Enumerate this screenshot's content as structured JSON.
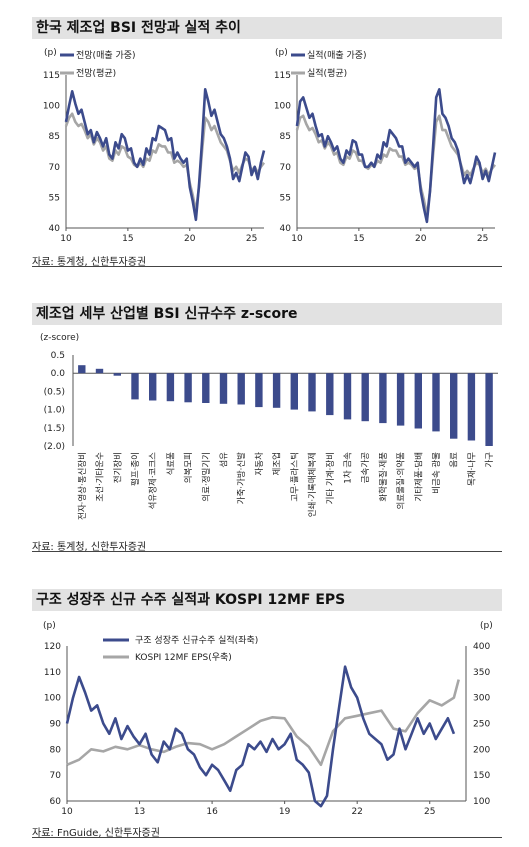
{
  "panel1": {
    "title": "한국 제조업 BSI 전망과 실적 추이",
    "source": "자료: 통계청, 신한투자증권",
    "chart_data": [
      {
        "type": "line",
        "unit_label": "(p)",
        "xlim": [
          10,
          26
        ],
        "xticks": [
          10,
          15,
          20,
          25
        ],
        "ylim": [
          40,
          115
        ],
        "yticks": [
          40,
          55,
          70,
          85,
          100,
          115
        ],
        "grid": false,
        "legend": "top-left",
        "series": [
          {
            "name": "전망(매출 가중)",
            "color": "#3c4b8c",
            "x": [
              10,
              10.25,
              10.5,
              10.75,
              11,
              11.25,
              11.5,
              11.75,
              12,
              12.25,
              12.5,
              12.75,
              13,
              13.25,
              13.5,
              13.75,
              14,
              14.25,
              14.5,
              14.75,
              15,
              15.25,
              15.5,
              15.75,
              16,
              16.25,
              16.5,
              16.75,
              17,
              17.25,
              17.5,
              17.75,
              18,
              18.25,
              18.5,
              18.75,
              19,
              19.25,
              19.5,
              19.75,
              20,
              20.25,
              20.5,
              20.75,
              21,
              21.25,
              21.5,
              21.75,
              22,
              22.25,
              22.5,
              22.75,
              23,
              23.25,
              23.5,
              23.75,
              24,
              24.25,
              24.5,
              24.75,
              25,
              25.25,
              25.5,
              25.75,
              26
            ],
            "y": [
              92,
              100,
              107,
              101,
              96,
              98,
              92,
              86,
              88,
              82,
              87,
              84,
              80,
              84,
              76,
              74,
              82,
              79,
              86,
              84,
              78,
              79,
              72,
              70,
              74,
              71,
              79,
              76,
              84,
              83,
              90,
              89,
              88,
              83,
              84,
              74,
              77,
              74,
              72,
              74,
              60,
              53,
              44,
              61,
              83,
              108,
              102,
              95,
              98,
              92,
              86,
              84,
              80,
              74,
              64,
              67,
              63,
              70,
              77,
              75,
              66,
              70,
              64,
              72,
              78
            ]
          },
          {
            "name": "전망(평균)",
            "color": "#a6a6a6",
            "x": [
              10,
              10.25,
              10.5,
              10.75,
              11,
              11.25,
              11.5,
              11.75,
              12,
              12.25,
              12.5,
              12.75,
              13,
              13.25,
              13.5,
              13.75,
              14,
              14.25,
              14.5,
              14.75,
              15,
              15.25,
              15.5,
              15.75,
              16,
              16.25,
              16.5,
              16.75,
              17,
              17.25,
              17.5,
              17.75,
              18,
              18.25,
              18.5,
              18.75,
              19,
              19.25,
              19.5,
              19.75,
              20,
              20.25,
              20.5,
              20.75,
              21,
              21.25,
              21.5,
              21.75,
              22,
              22.25,
              22.5,
              22.75,
              23,
              23.25,
              23.5,
              23.75,
              24,
              24.25,
              24.5,
              24.75,
              25,
              25.25,
              25.5,
              25.75,
              26
            ],
            "y": [
              90,
              94,
              96,
              92,
              90,
              91,
              88,
              84,
              86,
              81,
              84,
              82,
              78,
              80,
              74,
              73,
              78,
              76,
              80,
              79,
              75,
              74,
              71,
              70,
              72,
              70,
              74,
              73,
              78,
              77,
              81,
              80,
              80,
              77,
              77,
              72,
              73,
              72,
              70,
              71,
              62,
              56,
              48,
              60,
              78,
              94,
              92,
              88,
              90,
              86,
              82,
              80,
              78,
              73,
              68,
              70,
              67,
              71,
              74,
              73,
              68,
              70,
              67,
              70,
              72
            ]
          }
        ]
      },
      {
        "type": "line",
        "unit_label": "(p)",
        "xlim": [
          10,
          26
        ],
        "xticks": [
          10,
          15,
          20,
          25
        ],
        "ylim": [
          40,
          115
        ],
        "yticks": [
          40,
          55,
          70,
          85,
          100,
          115
        ],
        "grid": false,
        "legend": "top-left",
        "series": [
          {
            "name": "실적(매출 가중)",
            "color": "#3c4b8c",
            "x": [
              10,
              10.25,
              10.5,
              10.75,
              11,
              11.25,
              11.5,
              11.75,
              12,
              12.25,
              12.5,
              12.75,
              13,
              13.25,
              13.5,
              13.75,
              14,
              14.25,
              14.5,
              14.75,
              15,
              15.25,
              15.5,
              15.75,
              16,
              16.25,
              16.5,
              16.75,
              17,
              17.25,
              17.5,
              17.75,
              18,
              18.25,
              18.5,
              18.75,
              19,
              19.25,
              19.5,
              19.75,
              20,
              20.25,
              20.5,
              20.75,
              21,
              21.25,
              21.5,
              21.75,
              22,
              22.25,
              22.5,
              22.75,
              23,
              23.25,
              23.5,
              23.75,
              24,
              24.25,
              24.5,
              24.75,
              25,
              25.25,
              25.5,
              25.75,
              26
            ],
            "y": [
              90,
              102,
              104,
              99,
              94,
              96,
              90,
              85,
              86,
              80,
              85,
              82,
              78,
              80,
              74,
              72,
              78,
              76,
              83,
              82,
              76,
              76,
              70,
              70,
              72,
              70,
              76,
              74,
              82,
              80,
              88,
              86,
              84,
              80,
              80,
              72,
              74,
              72,
              70,
              72,
              58,
              50,
              43,
              58,
              80,
              104,
              108,
              96,
              94,
              90,
              84,
              82,
              78,
              70,
              62,
              66,
              62,
              68,
              75,
              72,
              64,
              68,
              63,
              70,
              77
            ]
          },
          {
            "name": "실적(평균)",
            "color": "#a6a6a6",
            "x": [
              10,
              10.25,
              10.5,
              10.75,
              11,
              11.25,
              11.5,
              11.75,
              12,
              12.25,
              12.5,
              12.75,
              13,
              13.25,
              13.5,
              13.75,
              14,
              14.25,
              14.5,
              14.75,
              15,
              15.25,
              15.5,
              15.75,
              16,
              16.25,
              16.5,
              16.75,
              17,
              17.25,
              17.5,
              17.75,
              18,
              18.25,
              18.5,
              18.75,
              19,
              19.25,
              19.5,
              19.75,
              20,
              20.25,
              20.5,
              20.75,
              21,
              21.25,
              21.5,
              21.75,
              22,
              22.25,
              22.5,
              22.75,
              23,
              23.25,
              23.5,
              23.75,
              24,
              24.25,
              24.5,
              24.75,
              25,
              25.25,
              25.5,
              25.75,
              26
            ],
            "y": [
              88,
              94,
              95,
              91,
              88,
              89,
              86,
              82,
              83,
              79,
              82,
              80,
              76,
              77,
              72,
              71,
              75,
              74,
              78,
              77,
              73,
              73,
              70,
              69,
              71,
              70,
              73,
              72,
              76,
              75,
              79,
              78,
              78,
              75,
              75,
              71,
              72,
              71,
              69,
              70,
              60,
              54,
              46,
              58,
              76,
              92,
              95,
              88,
              88,
              84,
              80,
              78,
              76,
              71,
              66,
              68,
              66,
              69,
              72,
              71,
              67,
              69,
              66,
              69,
              71
            ]
          }
        ]
      }
    ]
  },
  "panel2": {
    "title": "제조업 세부 산업별 BSI 신규수주 z-score",
    "source": "자료: 통계청, 신한투자증권",
    "chart_data": {
      "type": "bar",
      "unit_label": "(z-score)",
      "ylim": [
        -2.0,
        0.5
      ],
      "yticks": [
        0.5,
        0.0,
        -0.5,
        -1.0,
        -1.5,
        -2.0
      ],
      "ytick_labels": [
        "0.5",
        "0.0",
        "(0.5)",
        "(1.0)",
        "(1.5)",
        "(2.0)"
      ],
      "bar_color": "#3c4b8c",
      "categories": [
        "전자·영상·통신장비",
        "조선·기타운수",
        "전기장비",
        "펄프·종이",
        "석유정제·코크스",
        "식료품",
        "의복모피",
        "의료·정밀기기",
        "섬유",
        "가죽·가방·신발",
        "자동차",
        "제조업",
        "고무·플라스틱",
        "인쇄·기록매체복제",
        "기타 기계·장비",
        "1차 금속",
        "금속가공",
        "화학물질·제품",
        "의료물질·의약품",
        "기타제품·담배",
        "비금속 광물",
        "음료",
        "목재·나무",
        "가구"
      ],
      "values": [
        0.22,
        0.12,
        -0.07,
        -0.72,
        -0.75,
        -0.77,
        -0.8,
        -0.82,
        -0.84,
        -0.86,
        -0.93,
        -0.95,
        -1.0,
        -1.05,
        -1.15,
        -1.27,
        -1.32,
        -1.37,
        -1.44,
        -1.52,
        -1.6,
        -1.8,
        -1.85,
        -2.0
      ]
    }
  },
  "panel3": {
    "title": "구조 성장주 신규 수주 실적과 KOSPI 12MF EPS",
    "source": "자료: FnGuide, 신한투자증권",
    "chart_data": {
      "type": "line",
      "left_unit_label": "(p)",
      "right_unit_label": "(p)",
      "xlim": [
        10,
        26.5
      ],
      "xticks": [
        10,
        13,
        16,
        19,
        22,
        25
      ],
      "ylim_left": [
        60,
        120
      ],
      "yticks_left": [
        60,
        70,
        80,
        90,
        100,
        110,
        120
      ],
      "ylim_right": [
        100,
        400
      ],
      "yticks_right": [
        100,
        150,
        200,
        250,
        300,
        350,
        400
      ],
      "grid": false,
      "legend": "top-left",
      "series": [
        {
          "name": "구조 성장주 신규수주 실적(좌축)",
          "axis": "left",
          "color": "#3c4b8c",
          "x": [
            10,
            10.25,
            10.5,
            10.75,
            11,
            11.25,
            11.5,
            11.75,
            12,
            12.25,
            12.5,
            12.75,
            13,
            13.25,
            13.5,
            13.75,
            14,
            14.25,
            14.5,
            14.75,
            15,
            15.25,
            15.5,
            15.75,
            16,
            16.25,
            16.5,
            16.75,
            17,
            17.25,
            17.5,
            17.75,
            18,
            18.25,
            18.5,
            18.75,
            19,
            19.25,
            19.5,
            19.75,
            20,
            20.25,
            20.5,
            20.75,
            21,
            21.25,
            21.5,
            21.75,
            22,
            22.25,
            22.5,
            22.75,
            23,
            23.25,
            23.5,
            23.75,
            24,
            24.25,
            24.5,
            24.75,
            25,
            25.25,
            25.5,
            25.75,
            26
          ],
          "y": [
            90,
            100,
            108,
            102,
            95,
            97,
            90,
            86,
            92,
            84,
            89,
            85,
            82,
            86,
            78,
            75,
            83,
            80,
            88,
            86,
            80,
            78,
            73,
            70,
            74,
            72,
            68,
            64,
            72,
            74,
            82,
            80,
            83,
            79,
            84,
            80,
            82,
            86,
            76,
            74,
            71,
            60,
            58,
            62,
            80,
            96,
            112,
            104,
            100,
            92,
            86,
            84,
            82,
            76,
            78,
            88,
            80,
            86,
            92,
            86,
            90,
            84,
            88,
            92,
            86
          ]
        },
        {
          "name": "KOSPI 12MF EPS(우축)",
          "axis": "right",
          "color": "#a6a6a6",
          "x": [
            10,
            10.5,
            11,
            11.5,
            12,
            12.5,
            13,
            13.5,
            14,
            14.5,
            15,
            15.5,
            16,
            16.5,
            17,
            17.5,
            18,
            18.5,
            19,
            19.5,
            20,
            20.5,
            21,
            21.5,
            22,
            22.5,
            23,
            23.5,
            24,
            24.5,
            25,
            25.5,
            26,
            26.2
          ],
          "y": [
            170,
            180,
            200,
            196,
            205,
            200,
            208,
            200,
            195,
            205,
            212,
            210,
            200,
            210,
            225,
            240,
            255,
            262,
            260,
            225,
            205,
            170,
            235,
            260,
            265,
            270,
            275,
            240,
            235,
            270,
            295,
            285,
            300,
            335
          ]
        }
      ]
    }
  }
}
